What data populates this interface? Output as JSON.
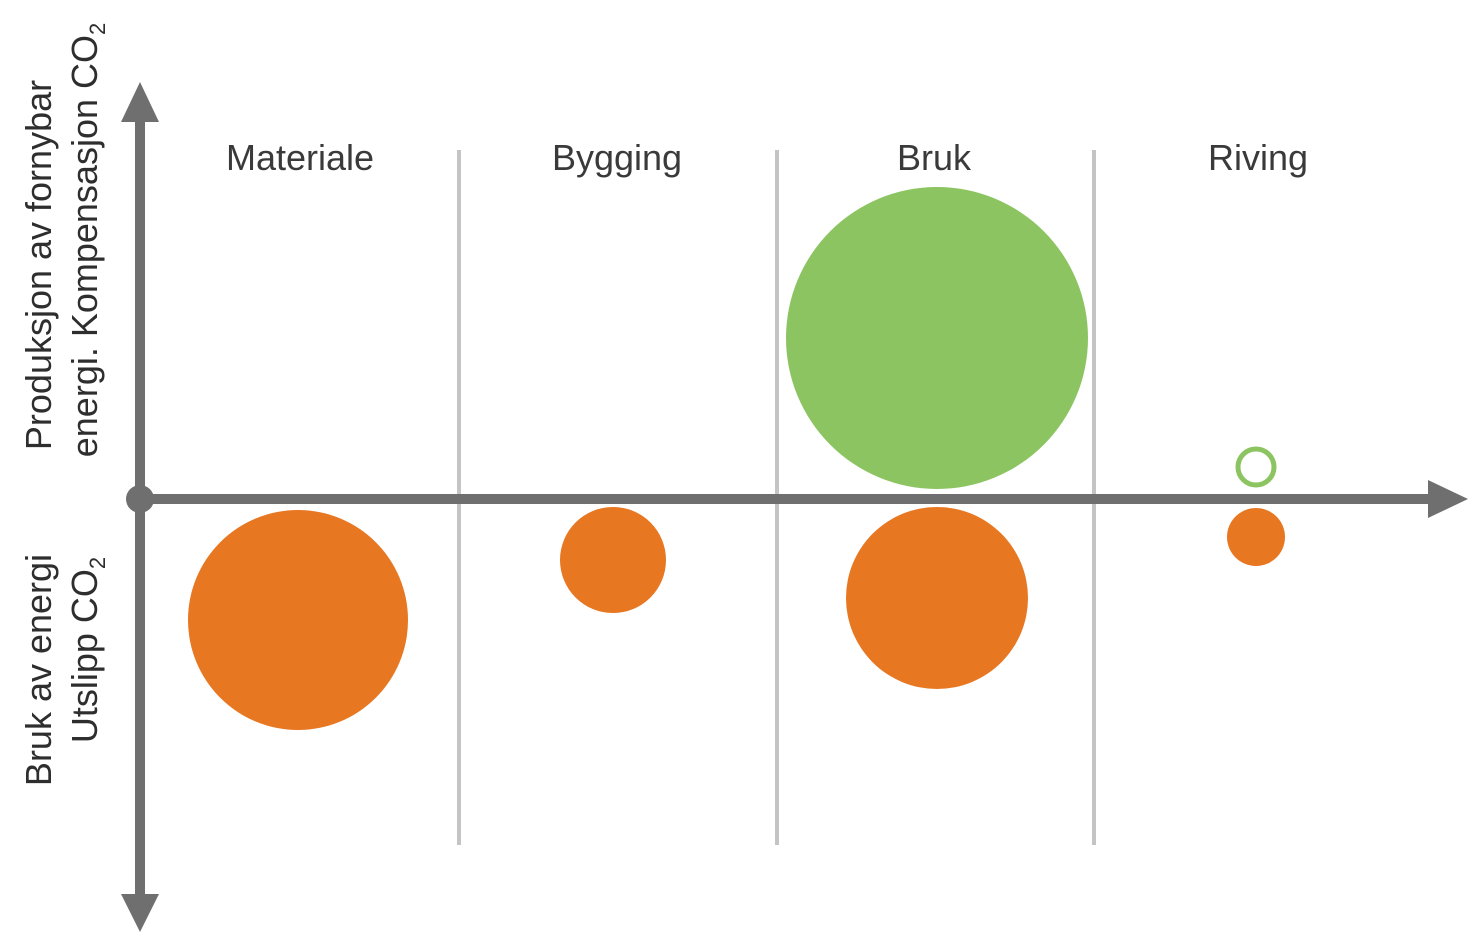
{
  "phases": [
    {
      "key": "materiale",
      "label": "Materiale"
    },
    {
      "key": "bygging",
      "label": "Bygging"
    },
    {
      "key": "bruk",
      "label": "Bruk"
    },
    {
      "key": "riving",
      "label": "Riving"
    }
  ],
  "y_axis": {
    "positive_line1": "Produksjon av fornybar",
    "positive_line2_main": "energi. Kompensasjon CO",
    "positive_line2_sub": "2",
    "negative_line1": "Bruk av energi",
    "negative_line2_main": "Utslipp CO",
    "negative_line2_sub": "2"
  },
  "bubbles": [
    {
      "phase": "materiale",
      "side": "negative",
      "kind": "emission",
      "relative_size": 1.0
    },
    {
      "phase": "bygging",
      "side": "negative",
      "kind": "emission",
      "relative_size": 0.48
    },
    {
      "phase": "bruk",
      "side": "positive",
      "kind": "compensation",
      "relative_size": 1.37
    },
    {
      "phase": "bruk",
      "side": "negative",
      "kind": "emission",
      "relative_size": 0.83
    },
    {
      "phase": "riving",
      "side": "positive",
      "kind": "compensation-outline",
      "relative_size": 0.16
    },
    {
      "phase": "riving",
      "side": "negative",
      "kind": "emission",
      "relative_size": 0.26
    }
  ],
  "colors": {
    "emission": "#E87722",
    "compensation": "#8CC462",
    "axis": "#6f6f6f",
    "divider": "#c4c4c4"
  }
}
